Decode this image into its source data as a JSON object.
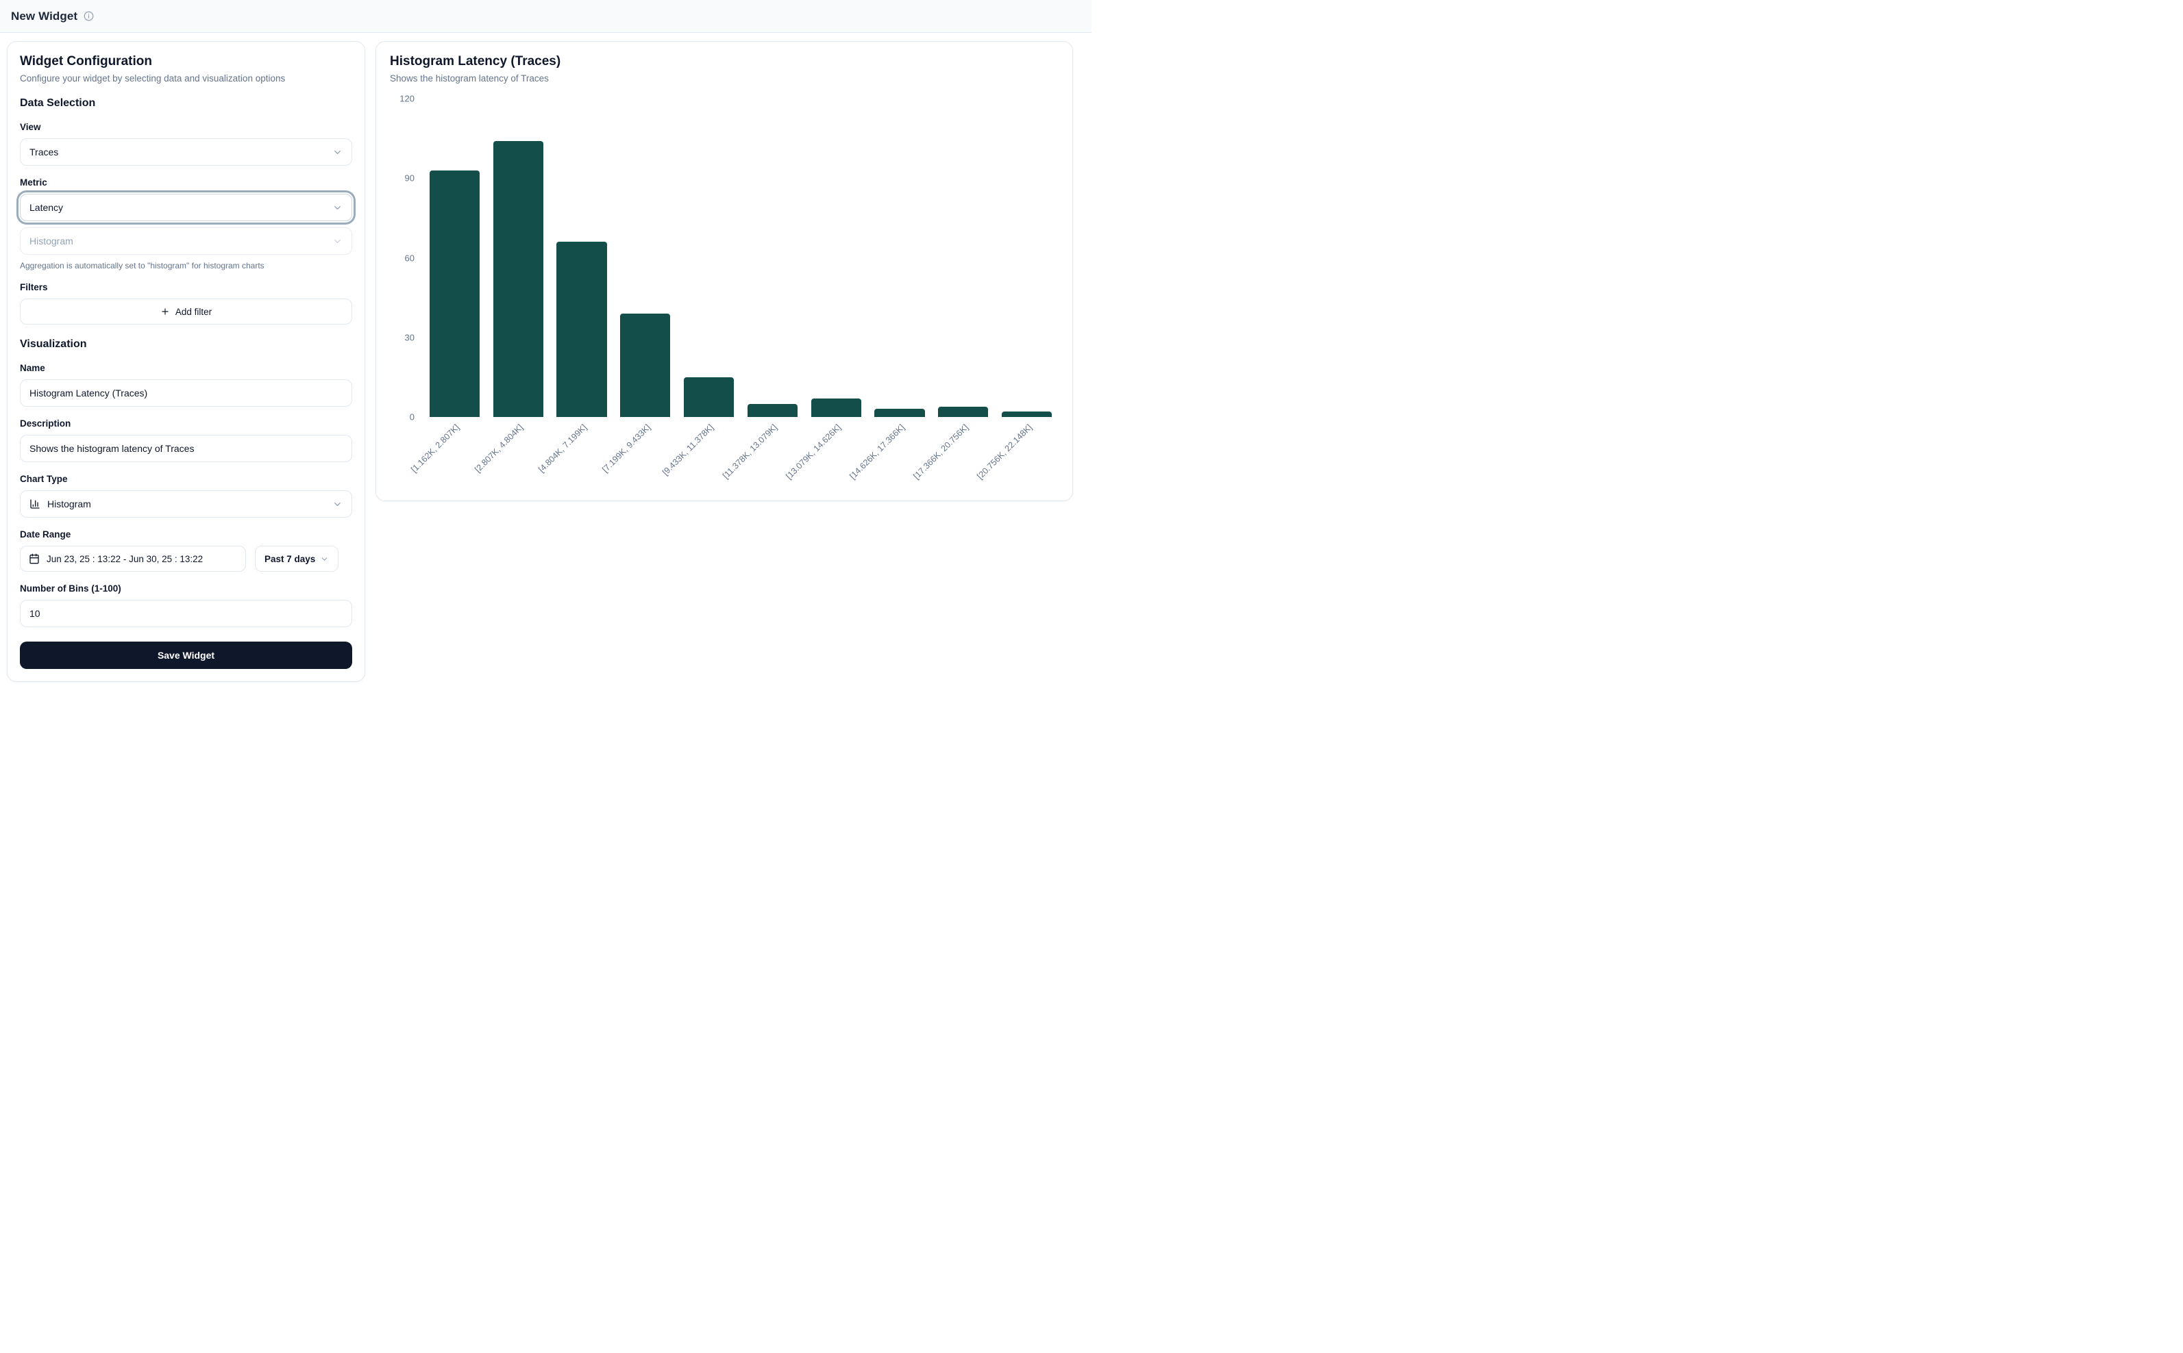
{
  "header": {
    "title": "New Widget"
  },
  "config_panel": {
    "title": "Widget Configuration",
    "subtitle": "Configure your widget by selecting data and visualization options",
    "data_selection": {
      "heading": "Data Selection",
      "view_label": "View",
      "view_value": "Traces",
      "metric_label": "Metric",
      "metric_value": "Latency",
      "aggregation_value": "Histogram",
      "aggregation_note": "Aggregation is automatically set to \"histogram\" for histogram charts",
      "filters_label": "Filters",
      "add_filter_label": "Add filter"
    },
    "visualization": {
      "heading": "Visualization",
      "name_label": "Name",
      "name_value": "Histogram Latency (Traces)",
      "description_label": "Description",
      "description_value": "Shows the histogram latency of Traces",
      "chart_type_label": "Chart Type",
      "chart_type_value": "Histogram",
      "date_range_label": "Date Range",
      "date_range_value": "Jun 23, 25 : 13:22 - Jun 30, 25 : 13:22",
      "date_preset_value": "Past 7 days",
      "bins_label": "Number of Bins (1-100)",
      "bins_value": "10",
      "save_label": "Save Widget"
    }
  },
  "preview_panel": {
    "title": "Histogram Latency (Traces)",
    "subtitle": "Shows the histogram latency of Traces"
  },
  "chart_data": {
    "type": "bar",
    "title": "Histogram Latency (Traces)",
    "categories": [
      "[1.162K, 2.807K]",
      "[2.807K, 4.804K]",
      "[4.804K, 7.199K]",
      "[7.199K, 9.433K]",
      "[9.433K, 11.378K]",
      "[11.378K, 13.079K]",
      "[13.079K, 14.626K]",
      "[14.626K, 17.366K]",
      "[17.366K, 20.756K]",
      "[20.756K, 22.148K]"
    ],
    "values": [
      93,
      104,
      66,
      39,
      15,
      5,
      7,
      3,
      4,
      2
    ],
    "xlabel": "",
    "ylabel": "",
    "ylim": [
      0,
      120
    ],
    "yticks": [
      0,
      30,
      60,
      90,
      120
    ],
    "bar_color": "#134e4a",
    "grid": false,
    "legend": false,
    "x_tick_rotation_deg": -45
  },
  "icons": {
    "info": "info-circle",
    "chevron": "chevron-down",
    "plus": "plus",
    "chart_type": "bar-chart-column",
    "calendar": "calendar"
  },
  "colors": {
    "bar": "#134e4a",
    "save_button_bg": "#0f172a",
    "border": "#e2e8f0",
    "muted_text": "#64748b",
    "topbar_bg": "#f8fafc"
  }
}
